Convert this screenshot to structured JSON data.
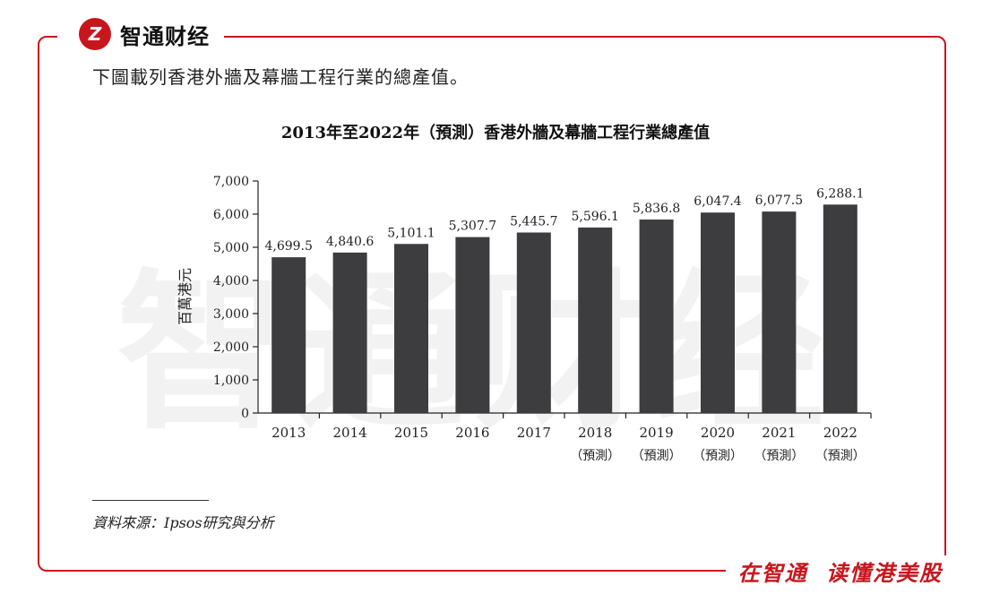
{
  "brand": {
    "logo_text": "Z",
    "name": "智通财经"
  },
  "slogan": "在智通 读懂港美股",
  "intro": "下圖載列香港外牆及幕牆工程行業的總產值。",
  "source": "資料來源：Ipsos研究與分析",
  "watermark": "智通财经",
  "colors": {
    "accent": "#c8161d",
    "bar": "#3d3d3f"
  },
  "chart_data": {
    "type": "bar",
    "title": "2013年至2022年（預測）香港外牆及幕牆工程行業總產值",
    "ylabel": "百萬港元",
    "xlabel": "",
    "ylim": [
      0,
      7000
    ],
    "yticks": [
      "0",
      "1,000",
      "2,000",
      "3,000",
      "4,000",
      "5,000",
      "6,000",
      "7,000"
    ],
    "categories": [
      "2013",
      "2014",
      "2015",
      "2016",
      "2017",
      "2018",
      "2019",
      "2020",
      "2021",
      "2022"
    ],
    "category_sublabels": [
      "",
      "",
      "",
      "",
      "",
      "（預測）",
      "（預測）",
      "（預測）",
      "（預測）",
      "（預測）"
    ],
    "values": [
      4699.5,
      4840.6,
      5101.1,
      5307.7,
      5445.7,
      5596.1,
      5836.8,
      6047.4,
      6077.5,
      6288.1
    ],
    "value_labels": [
      "4,699.5",
      "4,840.6",
      "5,101.1",
      "5,307.7",
      "5,445.7",
      "5,596.1",
      "5,836.8",
      "6,047.4",
      "6,077.5",
      "6,288.1"
    ]
  }
}
